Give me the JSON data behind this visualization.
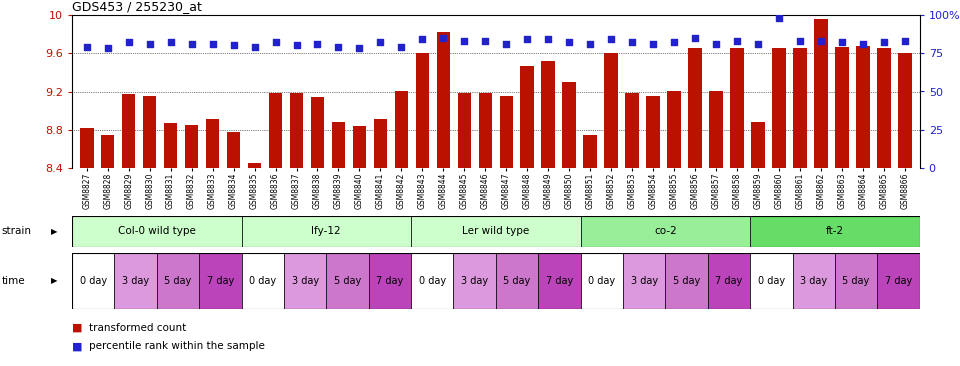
{
  "title": "GDS453 / 255230_at",
  "samples": [
    "GSM8827",
    "GSM8828",
    "GSM8829",
    "GSM8830",
    "GSM8831",
    "GSM8832",
    "GSM8833",
    "GSM8834",
    "GSM8835",
    "GSM8836",
    "GSM8837",
    "GSM8838",
    "GSM8839",
    "GSM8840",
    "GSM8841",
    "GSM8842",
    "GSM8843",
    "GSM8844",
    "GSM8845",
    "GSM8846",
    "GSM8847",
    "GSM8848",
    "GSM8849",
    "GSM8850",
    "GSM8851",
    "GSM8852",
    "GSM8853",
    "GSM8854",
    "GSM8855",
    "GSM8856",
    "GSM8857",
    "GSM8858",
    "GSM8859",
    "GSM8860",
    "GSM8861",
    "GSM8862",
    "GSM8863",
    "GSM8864",
    "GSM8865",
    "GSM8866"
  ],
  "transformed_count": [
    8.82,
    8.75,
    9.17,
    9.15,
    8.87,
    8.85,
    8.91,
    8.78,
    8.46,
    9.18,
    9.18,
    9.14,
    8.88,
    8.84,
    8.91,
    9.2,
    9.6,
    9.82,
    9.18,
    9.18,
    9.15,
    9.47,
    9.52,
    9.3,
    8.75,
    9.6,
    9.18,
    9.15,
    9.21,
    9.65,
    9.21,
    9.65,
    8.88,
    9.65,
    9.65,
    9.95,
    9.66,
    9.67,
    9.65,
    9.6
  ],
  "percentile_rank": [
    79,
    78,
    82,
    81,
    82,
    81,
    81,
    80,
    79,
    82,
    80,
    81,
    79,
    78,
    82,
    79,
    84,
    85,
    83,
    83,
    81,
    84,
    84,
    82,
    81,
    84,
    82,
    81,
    82,
    85,
    81,
    83,
    81,
    98,
    83,
    83,
    82,
    81,
    82,
    83
  ],
  "ylim_left": [
    8.4,
    10.0
  ],
  "ylim_right": [
    0,
    100
  ],
  "yticks_left": [
    8.4,
    8.8,
    9.2,
    9.6,
    10.0
  ],
  "ytick_labels_left": [
    "8.4",
    "8.8",
    "9.2",
    "9.6",
    "10"
  ],
  "yticks_right": [
    0,
    25,
    50,
    75,
    100
  ],
  "ytick_labels_right": [
    "0",
    "25",
    "50",
    "75",
    "100%"
  ],
  "strains": [
    {
      "name": "Col-0 wild type",
      "start": 0,
      "end": 8,
      "color": "#ccffcc"
    },
    {
      "name": "lfy-12",
      "start": 8,
      "end": 16,
      "color": "#ccffcc"
    },
    {
      "name": "Ler wild type",
      "start": 16,
      "end": 24,
      "color": "#ccffcc"
    },
    {
      "name": "co-2",
      "start": 24,
      "end": 32,
      "color": "#99ee99"
    },
    {
      "name": "ft-2",
      "start": 32,
      "end": 40,
      "color": "#66dd66"
    }
  ],
  "time_labels": [
    "0 day",
    "3 day",
    "5 day",
    "7 day"
  ],
  "time_colors": [
    "#ffffff",
    "#dd99dd",
    "#cc77cc",
    "#bb44bb"
  ],
  "bar_color": "#bb1100",
  "dot_color": "#2222cc",
  "background_color": "#ffffff"
}
